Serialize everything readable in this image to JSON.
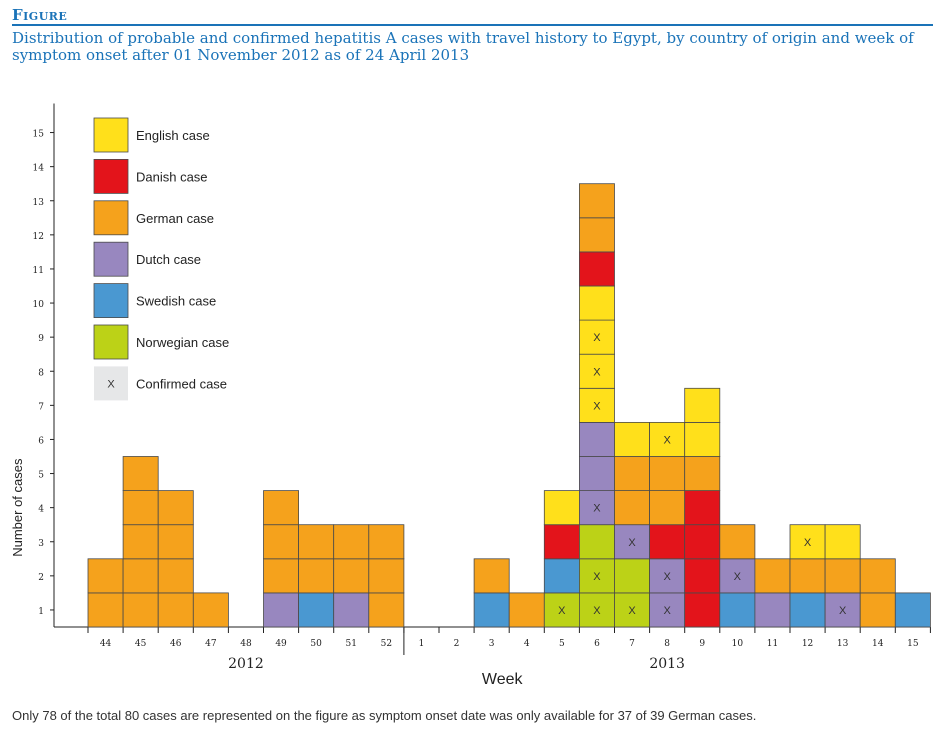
{
  "figure_label": "Figure",
  "caption": "Distribution of probable and confirmed hepatitis A cases with travel history to Egypt, by country of origin and week of symptom onset after 01 November 2012 as of 24 April 2013",
  "footnote": "Only 78 of the total 80 cases are represented on the figure as symptom onset date was only available for 37 of 39 German cases.",
  "chart_data": {
    "type": "bar",
    "stacked": true,
    "categories": [
      "44",
      "45",
      "46",
      "47",
      "48",
      "49",
      "50",
      "51",
      "52",
      "1",
      "2",
      "3",
      "4",
      "5",
      "6",
      "7",
      "8",
      "9",
      "10",
      "11",
      "12",
      "13",
      "14",
      "15"
    ],
    "year_groups": [
      {
        "label": "2012",
        "categories": [
          "44",
          "45",
          "46",
          "47",
          "48",
          "49",
          "50",
          "51",
          "52"
        ]
      },
      {
        "label": "2013",
        "categories": [
          "1",
          "2",
          "3",
          "4",
          "5",
          "6",
          "7",
          "8",
          "9",
          "10",
          "11",
          "12",
          "13",
          "14",
          "15"
        ]
      }
    ],
    "xlabel": "Week",
    "ylabel": "Number of cases",
    "ylim": [
      0,
      15
    ],
    "yticks": [
      1,
      2,
      3,
      4,
      5,
      6,
      7,
      8,
      9,
      10,
      11,
      12,
      13,
      14,
      15
    ],
    "colors": {
      "english": "#ffe01b",
      "danish": "#e3141b",
      "german": "#f5a21c",
      "dutch": "#9887bf",
      "swedish": "#4a98d1",
      "norwegian": "#bcd217",
      "confirmed_key": "#e6e7e8"
    },
    "legend": [
      {
        "key": "english",
        "label": "English case"
      },
      {
        "key": "danish",
        "label": "Danish case"
      },
      {
        "key": "german",
        "label": "German case"
      },
      {
        "key": "dutch",
        "label": "Dutch case"
      },
      {
        "key": "swedish",
        "label": "Swedish case"
      },
      {
        "key": "norwegian",
        "label": "Norwegian case"
      },
      {
        "key": "confirmed_key",
        "label": "Confirmed case",
        "marker": "X"
      }
    ],
    "legend_position": "top-left",
    "confirmed_marker": "X",
    "columns": [
      {
        "week": "44",
        "cases": [
          "german",
          "german"
        ],
        "confirmed": [
          false,
          false
        ]
      },
      {
        "week": "45",
        "cases": [
          "german",
          "german",
          "german",
          "german",
          "german"
        ],
        "confirmed": [
          false,
          false,
          false,
          false,
          false
        ]
      },
      {
        "week": "46",
        "cases": [
          "german",
          "german",
          "german",
          "german"
        ],
        "confirmed": [
          false,
          false,
          false,
          false
        ]
      },
      {
        "week": "47",
        "cases": [
          "german"
        ],
        "confirmed": [
          false
        ]
      },
      {
        "week": "48",
        "cases": [],
        "confirmed": []
      },
      {
        "week": "49",
        "cases": [
          "dutch",
          "german",
          "german",
          "german"
        ],
        "confirmed": [
          false,
          false,
          false,
          false
        ]
      },
      {
        "week": "50",
        "cases": [
          "swedish",
          "german",
          "german"
        ],
        "confirmed": [
          false,
          false,
          false
        ]
      },
      {
        "week": "51",
        "cases": [
          "dutch",
          "german",
          "german"
        ],
        "confirmed": [
          false,
          false,
          false
        ]
      },
      {
        "week": "52",
        "cases": [
          "german",
          "german",
          "german"
        ],
        "confirmed": [
          false,
          false,
          false
        ]
      },
      {
        "week": "1",
        "cases": [],
        "confirmed": []
      },
      {
        "week": "2",
        "cases": [],
        "confirmed": []
      },
      {
        "week": "3",
        "cases": [
          "swedish",
          "german"
        ],
        "confirmed": [
          false,
          false
        ]
      },
      {
        "week": "4",
        "cases": [
          "german"
        ],
        "confirmed": [
          false
        ]
      },
      {
        "week": "5",
        "cases": [
          "norwegian",
          "swedish",
          "danish",
          "english"
        ],
        "confirmed": [
          true,
          false,
          false,
          false
        ]
      },
      {
        "week": "6",
        "cases": [
          "norwegian",
          "norwegian",
          "norwegian",
          "dutch",
          "dutch",
          "dutch",
          "english",
          "english",
          "english",
          "english",
          "danish",
          "german",
          "german"
        ],
        "confirmed": [
          true,
          true,
          false,
          true,
          false,
          false,
          true,
          true,
          true,
          false,
          false,
          false,
          false
        ]
      },
      {
        "week": "7",
        "cases": [
          "norwegian",
          "norwegian",
          "dutch",
          "german",
          "german",
          "english"
        ],
        "confirmed": [
          true,
          false,
          true,
          false,
          false,
          false
        ]
      },
      {
        "week": "8",
        "cases": [
          "dutch",
          "dutch",
          "danish",
          "german",
          "german",
          "english"
        ],
        "confirmed": [
          true,
          true,
          false,
          false,
          false,
          true
        ]
      },
      {
        "week": "9",
        "cases": [
          "danish",
          "danish",
          "danish",
          "danish",
          "german",
          "english",
          "english"
        ],
        "confirmed": [
          false,
          false,
          false,
          false,
          false,
          false,
          false
        ]
      },
      {
        "week": "10",
        "cases": [
          "swedish",
          "dutch",
          "german"
        ],
        "confirmed": [
          false,
          true,
          false
        ]
      },
      {
        "week": "11",
        "cases": [
          "dutch",
          "german"
        ],
        "confirmed": [
          false,
          false
        ]
      },
      {
        "week": "12",
        "cases": [
          "swedish",
          "german",
          "english"
        ],
        "confirmed": [
          false,
          false,
          true
        ]
      },
      {
        "week": "13",
        "cases": [
          "dutch",
          "german",
          "english"
        ],
        "confirmed": [
          true,
          false,
          false
        ]
      },
      {
        "week": "14",
        "cases": [
          "german",
          "german"
        ],
        "confirmed": [
          false,
          false
        ]
      },
      {
        "week": "15",
        "cases": [
          "swedish"
        ],
        "confirmed": [
          false
        ]
      }
    ]
  }
}
